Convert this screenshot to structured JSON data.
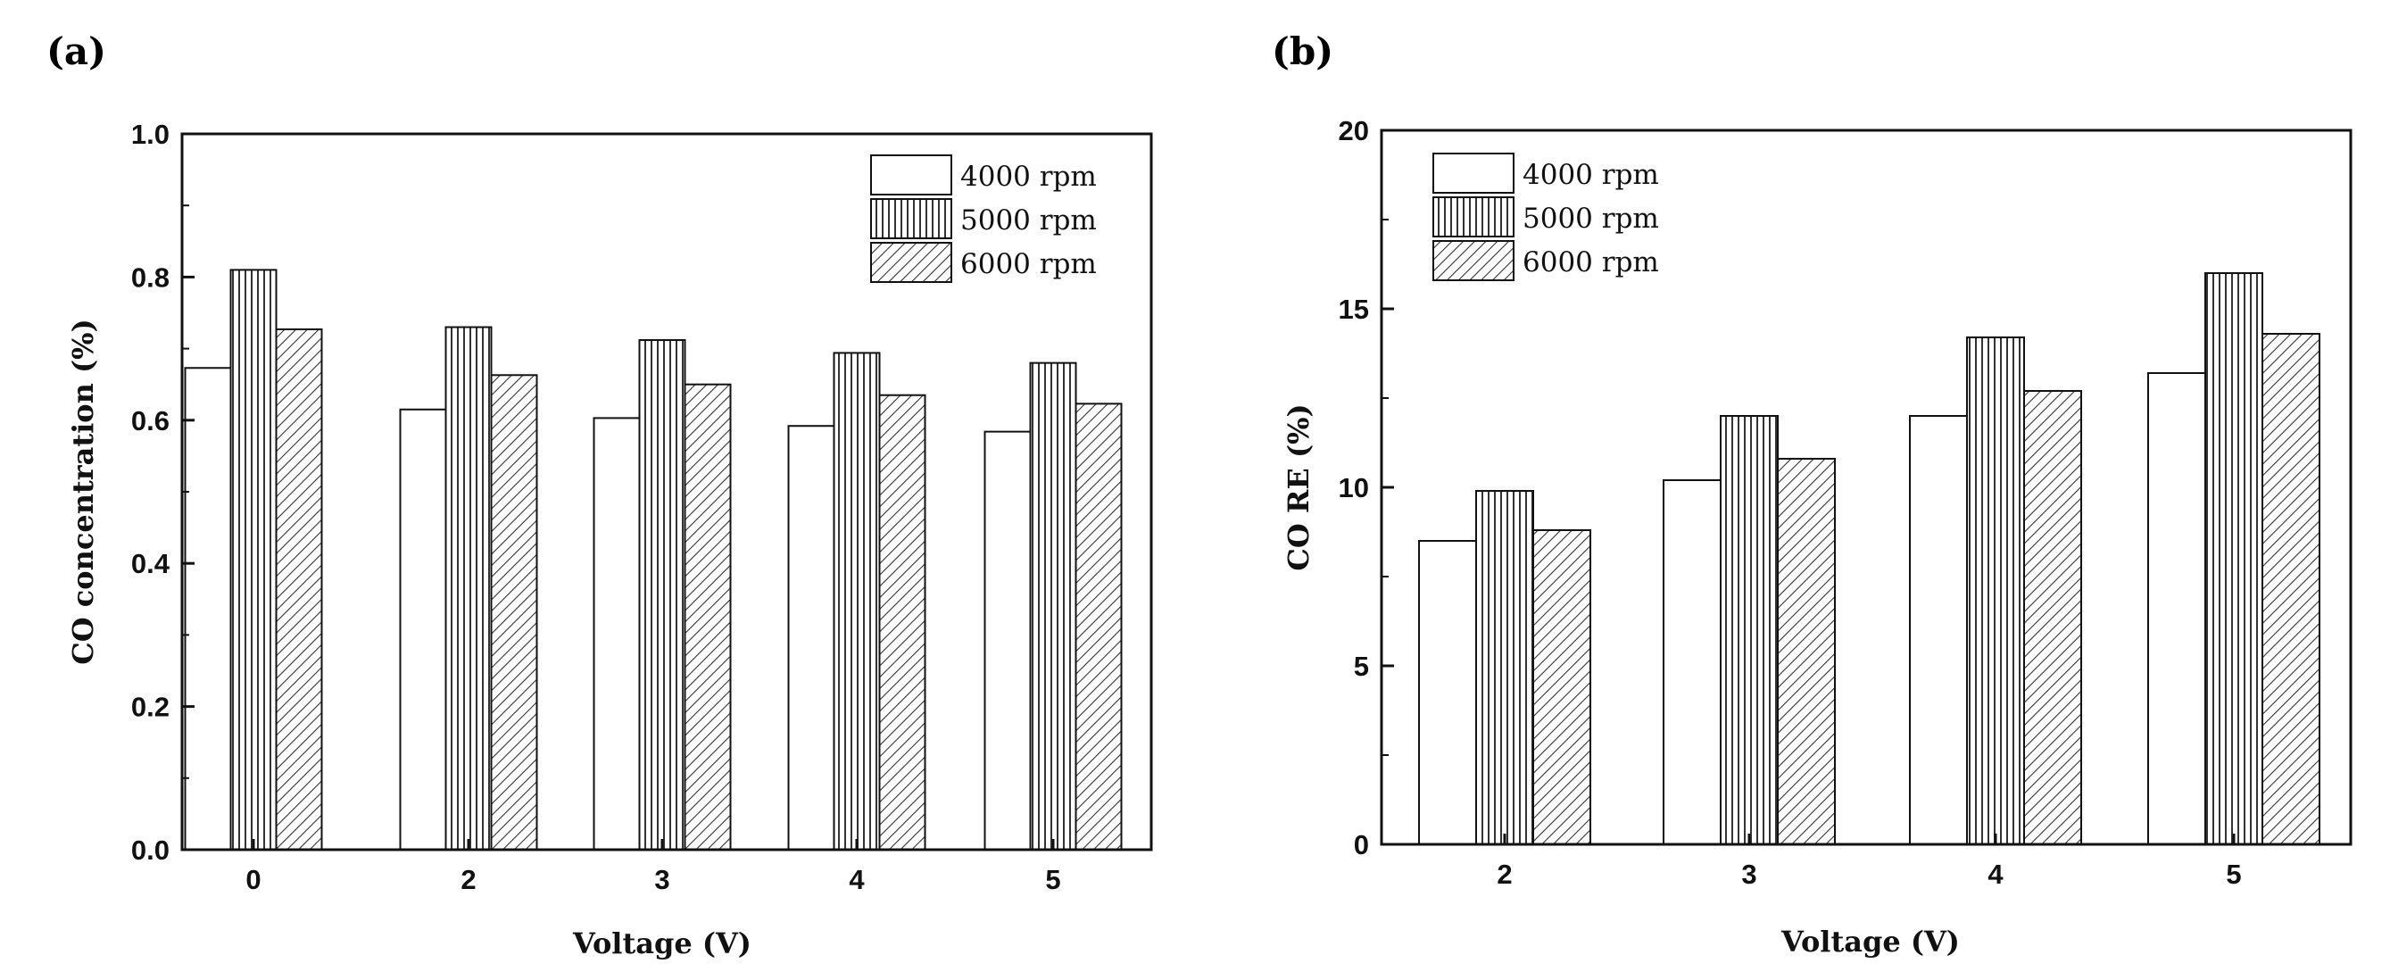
{
  "chart_data": [
    {
      "panel": "(a)",
      "type": "bar",
      "categories": [
        "0",
        "2",
        "3",
        "4",
        "5"
      ],
      "series": [
        {
          "name": "4000 rpm",
          "pattern": "plain",
          "values": [
            0.673,
            0.615,
            0.603,
            0.592,
            0.584
          ]
        },
        {
          "name": "5000 rpm",
          "pattern": "vertical",
          "values": [
            0.81,
            0.73,
            0.712,
            0.694,
            0.68
          ]
        },
        {
          "name": "6000 rpm",
          "pattern": "diagonal",
          "values": [
            0.727,
            0.663,
            0.65,
            0.635,
            0.623
          ]
        }
      ],
      "xlabel": "Voltage (V)",
      "ylabel": "CO concentration (%)",
      "ylim": [
        0.0,
        1.0
      ],
      "yticks": [
        "0.0",
        "0.2",
        "0.4",
        "0.6",
        "0.8",
        "1.0"
      ],
      "legend": "top-right"
    },
    {
      "panel": "(b)",
      "type": "bar",
      "categories": [
        "2",
        "3",
        "4",
        "5"
      ],
      "series": [
        {
          "name": "4000 rpm",
          "pattern": "plain",
          "values": [
            8.5,
            10.2,
            12.0,
            13.2
          ]
        },
        {
          "name": "5000 rpm",
          "pattern": "vertical",
          "values": [
            9.9,
            12.0,
            14.2,
            16.0
          ]
        },
        {
          "name": "6000 rpm",
          "pattern": "diagonal",
          "values": [
            8.8,
            10.8,
            12.7,
            14.3
          ]
        }
      ],
      "xlabel": "Voltage (V)",
      "ylabel": "CO RE (%)",
      "ylim": [
        0,
        20
      ],
      "yticks": [
        "0",
        "5",
        "10",
        "15",
        "20"
      ],
      "legend": "top-left"
    }
  ],
  "colors": {
    "axis": "#111111",
    "bar_fill": "#ffffff",
    "hatch": "#333333"
  }
}
